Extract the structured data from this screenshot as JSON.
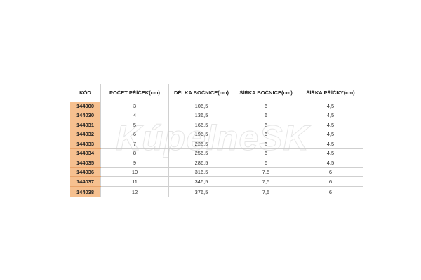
{
  "watermark": "KúpelneSK",
  "colors": {
    "code_bg": "#f6c08f",
    "border": "#d0d0d0"
  },
  "table": {
    "headers": [
      "KÓD",
      "POČET PŘÍČEK(cm)",
      "DÉLKA BOČNICE(cm)",
      "ŠÍŘKA BOČNICE(cm)",
      "ŠÍŘKA PŘÍČKY(cm)"
    ],
    "rows": [
      [
        "144000",
        "3",
        "106,5",
        "6",
        "4,5"
      ],
      [
        "144030",
        "4",
        "136,5",
        "6",
        "4,5"
      ],
      [
        "144031",
        "5",
        "166,5",
        "6",
        "4,5"
      ],
      [
        "144032",
        "6",
        "196,5",
        "6",
        "4,5"
      ],
      [
        "144033",
        "7",
        "226,5",
        "6",
        "4,5"
      ],
      [
        "144034",
        "8",
        "256,5",
        "6",
        "4,5"
      ],
      [
        "144035",
        "9",
        "286,5",
        "6",
        "4,5"
      ],
      [
        "144036",
        "10",
        "316,5",
        "7,5",
        "6"
      ],
      [
        "144037",
        "11",
        "346,5",
        "7,5",
        "6"
      ],
      [
        "144038",
        "12",
        "376,5",
        "7,5",
        "6"
      ]
    ]
  }
}
